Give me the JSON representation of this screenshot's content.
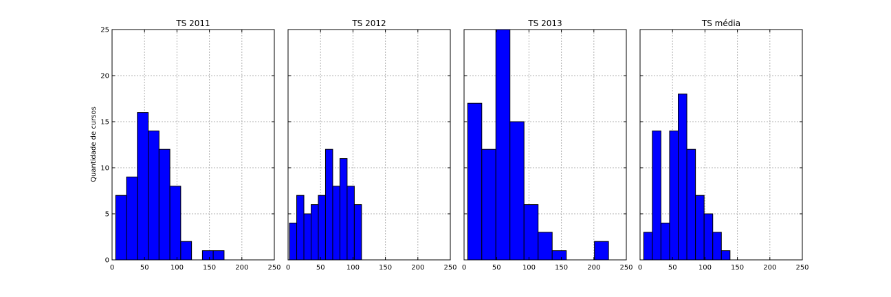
{
  "figure": {
    "ylabel": "Quantidade de cursos",
    "xlim": [
      0,
      250
    ],
    "ylim": [
      0,
      25
    ],
    "xticks": [
      0,
      50,
      100,
      150,
      200,
      250
    ],
    "yticks": [
      0,
      5,
      10,
      15,
      20,
      25
    ],
    "grid": true,
    "sharey": true,
    "bar_color": "#0000ff",
    "edge_color": "#000000"
  },
  "chart_data": [
    {
      "type": "bar",
      "title": "TS 2011",
      "bin_width": 16.7,
      "bars": [
        {
          "x0": 5.6,
          "count": 7
        },
        {
          "x0": 22.3,
          "count": 9
        },
        {
          "x0": 39.0,
          "count": 16
        },
        {
          "x0": 55.7,
          "count": 14
        },
        {
          "x0": 72.4,
          "count": 12
        },
        {
          "x0": 89.1,
          "count": 8
        },
        {
          "x0": 105.8,
          "count": 2
        },
        {
          "x0": 122.5,
          "count": 0
        },
        {
          "x0": 139.2,
          "count": 1
        },
        {
          "x0": 155.9,
          "count": 1
        }
      ]
    },
    {
      "type": "bar",
      "title": "TS 2012",
      "bin_width": 11.1,
      "bars": [
        {
          "x0": 2.2,
          "count": 4
        },
        {
          "x0": 13.3,
          "count": 7
        },
        {
          "x0": 24.4,
          "count": 5
        },
        {
          "x0": 35.5,
          "count": 6
        },
        {
          "x0": 46.6,
          "count": 7
        },
        {
          "x0": 57.7,
          "count": 12
        },
        {
          "x0": 68.8,
          "count": 8
        },
        {
          "x0": 79.9,
          "count": 11
        },
        {
          "x0": 91.0,
          "count": 8
        },
        {
          "x0": 102.1,
          "count": 6
        }
      ]
    },
    {
      "type": "bar",
      "title": "TS 2013",
      "bin_width": 21.7,
      "bars": [
        {
          "x0": 5.6,
          "count": 17
        },
        {
          "x0": 27.3,
          "count": 12
        },
        {
          "x0": 49.0,
          "count": 25
        },
        {
          "x0": 70.7,
          "count": 15
        },
        {
          "x0": 92.4,
          "count": 6
        },
        {
          "x0": 114.1,
          "count": 3
        },
        {
          "x0": 135.8,
          "count": 1
        },
        {
          "x0": 157.5,
          "count": 0
        },
        {
          "x0": 179.2,
          "count": 0
        },
        {
          "x0": 200.9,
          "count": 2
        }
      ]
    },
    {
      "type": "bar",
      "title": "TS média",
      "bin_width": 13.3,
      "bars": [
        {
          "x0": 5.6,
          "count": 3
        },
        {
          "x0": 18.9,
          "count": 14
        },
        {
          "x0": 32.2,
          "count": 4
        },
        {
          "x0": 45.5,
          "count": 14
        },
        {
          "x0": 58.8,
          "count": 18
        },
        {
          "x0": 72.1,
          "count": 12
        },
        {
          "x0": 85.4,
          "count": 7
        },
        {
          "x0": 98.7,
          "count": 5
        },
        {
          "x0": 112.0,
          "count": 3
        },
        {
          "x0": 125.3,
          "count": 1
        }
      ]
    }
  ]
}
